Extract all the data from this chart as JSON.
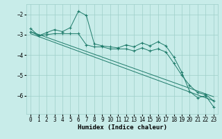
{
  "xlabel": "Humidex (Indice chaleur)",
  "background_color": "#c8ece9",
  "grid_color": "#9ecec8",
  "line_color": "#1e7b6a",
  "xlim": [
    -0.5,
    23.5
  ],
  "ylim": [
    -6.9,
    -1.5
  ],
  "yticks": [
    -6,
    -5,
    -4,
    -3,
    -2
  ],
  "xticks": [
    0,
    1,
    2,
    3,
    4,
    5,
    6,
    7,
    8,
    9,
    10,
    11,
    12,
    13,
    14,
    15,
    16,
    17,
    18,
    19,
    20,
    21,
    22,
    23
  ],
  "main_y": [
    -2.7,
    -3.05,
    -2.9,
    -2.75,
    -2.85,
    -2.65,
    -1.85,
    -2.05,
    -3.45,
    -3.55,
    -3.6,
    -3.65,
    -3.5,
    -3.6,
    -3.4,
    -3.55,
    -3.35,
    -3.55,
    -4.1,
    -4.85,
    -5.8,
    -6.1,
    -6.0,
    -6.55
  ],
  "line2_y": [
    -2.85,
    -3.05,
    -3.0,
    -2.95,
    -2.95,
    -2.95,
    -2.95,
    -3.5,
    -3.6,
    -3.6,
    -3.7,
    -3.7,
    -3.7,
    -3.8,
    -3.65,
    -3.8,
    -3.7,
    -3.85,
    -4.4,
    -5.0,
    -5.5,
    -5.85,
    -5.95,
    -6.25
  ],
  "trend1_x": [
    0,
    23
  ],
  "trend1_y": [
    -2.85,
    -6.05
  ],
  "trend2_x": [
    0,
    23
  ],
  "trend2_y": [
    -2.95,
    -6.25
  ]
}
